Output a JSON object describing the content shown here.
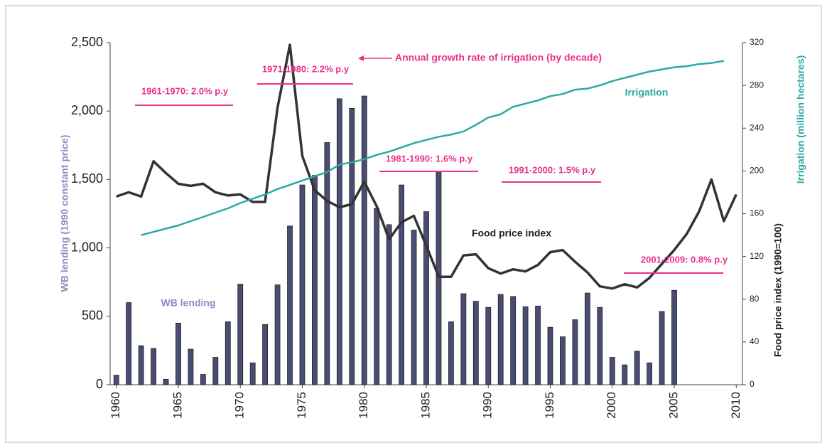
{
  "chart_data": {
    "type": "bar-line",
    "x": [
      1960,
      1961,
      1962,
      1963,
      1964,
      1965,
      1966,
      1967,
      1968,
      1969,
      1970,
      1971,
      1972,
      1973,
      1974,
      1975,
      1976,
      1977,
      1978,
      1979,
      1980,
      1981,
      1982,
      1983,
      1984,
      1985,
      1986,
      1987,
      1988,
      1989,
      1990,
      1991,
      1992,
      1993,
      1994,
      1995,
      1996,
      1997,
      1998,
      1999,
      2000,
      2001,
      2002,
      2003,
      2004,
      2005,
      2006,
      2007,
      2008,
      2009,
      2010
    ],
    "xticks": [
      1960,
      1965,
      1970,
      1975,
      1980,
      1985,
      1990,
      1995,
      2000,
      2005,
      2010
    ],
    "ylabel": "WB lending (1990 constant price)",
    "y2labels": [
      "Irrigation (million hectares)",
      "Food price index (1990=100)"
    ],
    "ylim": [
      0,
      2500
    ],
    "yticks": [
      0,
      500,
      {
        "value": 1000,
        "label": "1,000"
      },
      {
        "value": 1500,
        "label": "1,500"
      },
      {
        "value": 2000,
        "label": "2,000"
      },
      {
        "value": 2500,
        "label": "2,500"
      }
    ],
    "y2lim": [
      0,
      320
    ],
    "y2ticks": [
      0,
      40,
      80,
      120,
      160,
      200,
      240,
      280,
      320
    ],
    "series": [
      {
        "name": "WB lending",
        "kind": "bar",
        "color": "#4a4d73",
        "label_color": "#8a8cc0",
        "values": [
          70,
          600,
          285,
          265,
          40,
          450,
          260,
          75,
          200,
          460,
          735,
          160,
          440,
          730,
          1160,
          1460,
          1530,
          1770,
          2090,
          2020,
          2110,
          1290,
          1170,
          1460,
          1130,
          1265,
          1560,
          460,
          665,
          610,
          565,
          660,
          645,
          570,
          575,
          420,
          350,
          475,
          670,
          565,
          200,
          145,
          245,
          160,
          535,
          690,
          null,
          null,
          null,
          null,
          null
        ]
      },
      {
        "name": "Food price index",
        "kind": "line",
        "axis": "y2",
        "color": "#333333",
        "label_color": "#222222",
        "values": [
          176,
          180,
          176,
          209,
          198,
          188,
          186,
          188,
          180,
          177,
          178,
          171,
          171,
          259,
          318,
          214,
          182,
          172,
          166,
          169,
          190,
          167,
          136,
          152,
          158,
          130,
          101,
          101,
          121,
          122,
          109,
          104,
          108,
          106,
          112,
          124,
          126,
          115,
          105,
          92,
          90,
          94,
          91,
          100,
          113,
          126,
          141,
          162,
          192,
          153,
          178
        ]
      },
      {
        "name": "Irrigation",
        "kind": "line",
        "axis": "y2",
        "color": "#2aa9a4",
        "label_color": "#2aa9a4",
        "values": [
          null,
          null,
          140,
          143,
          146,
          149,
          153,
          157,
          161,
          165,
          170,
          174,
          178,
          183,
          187,
          191,
          195,
          199,
          206,
          208,
          211,
          215,
          218,
          222,
          226,
          229,
          232,
          234,
          237,
          243,
          250,
          253,
          260,
          263,
          266,
          270,
          272,
          276,
          277,
          280,
          284,
          287,
          290,
          293,
          295,
          297,
          298,
          300,
          301,
          303,
          null
        ]
      }
    ],
    "annotation": "Annual growth rate of irrigation (by decade)",
    "decade_rates": [
      "1961-1970: 2.0% p.y",
      "1971-1980: 2.2% p.y",
      "1981-1990: 1.6% p.y",
      "1991-2000: 1.5% p.y",
      "2001-2009: 0.8% p.y"
    ],
    "annotation_color": "#e6318a"
  }
}
